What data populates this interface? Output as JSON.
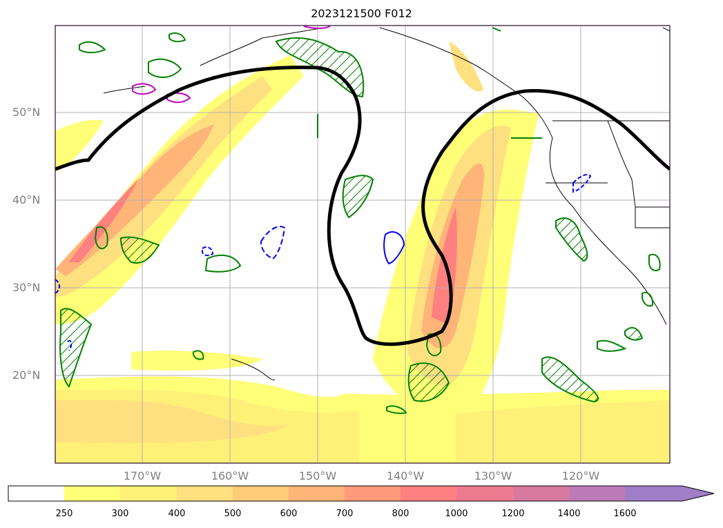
{
  "title": "2023121500 F012",
  "lat_labels": [
    "50°N",
    "40°N",
    "30°N",
    "20°N"
  ],
  "lon_labels": [
    "170°W",
    "160°W",
    "150°W",
    "140°W",
    "130°W",
    "120°W"
  ],
  "colorbar": {
    "ticks": [
      "250",
      "300",
      "400",
      "500",
      "600",
      "700",
      "800",
      "1000",
      "1200",
      "1400",
      "1600"
    ],
    "colors": [
      "#ffffff",
      "#ffff78",
      "#fff078",
      "#ffe080",
      "#ffcc7a",
      "#ffb478",
      "#ff9a7a",
      "#ff8080",
      "#ee7a90",
      "#d87aa0",
      "#bc7ab8",
      "#a07ec8"
    ]
  },
  "colors": {
    "jet_contour": "#000000",
    "green_contour": "#008000",
    "blue_contour": "#0000ff",
    "magenta_contour": "#c000c0",
    "coastline": "#000000"
  }
}
